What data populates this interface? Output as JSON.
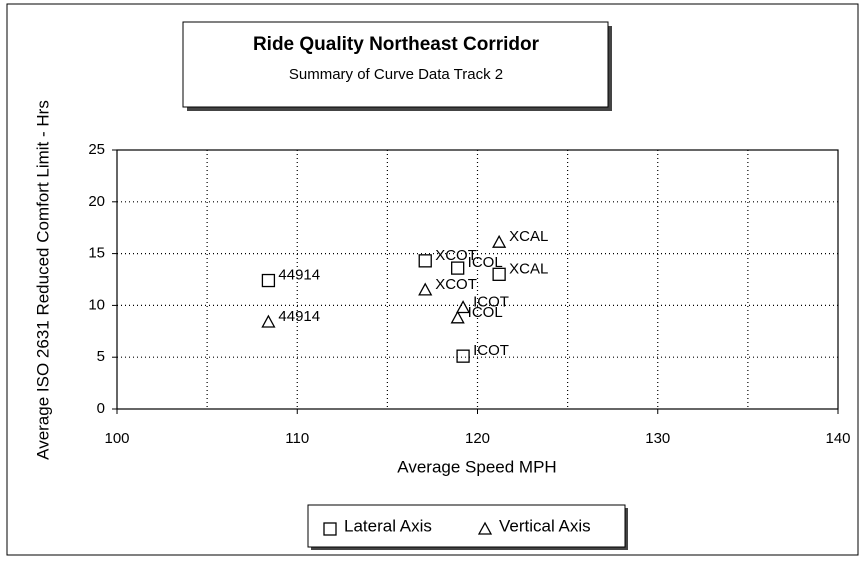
{
  "chart_data": {
    "type": "scatter",
    "title": "Ride Quality Northeast Corridor",
    "subtitle": "Summary of Curve Data Track 2",
    "x_label": "Average Speed MPH",
    "y_label": "Average ISO 2631 Reduced Comfort Limit  - Hrs",
    "xlim": [
      100,
      140
    ],
    "xticks": [
      100,
      110,
      120,
      130,
      140
    ],
    "ylim": [
      0,
      25
    ],
    "yticks": [
      0,
      5,
      10,
      15,
      20,
      25
    ],
    "grid": true,
    "grid_step_x": 5,
    "legend": "bottom",
    "series": [
      {
        "name": "Lateral Axis",
        "marker": "square",
        "color": "#000000",
        "x": [
          108.4,
          117.1,
          118.9,
          121.2,
          119.2
        ],
        "values": [
          12.4,
          14.3,
          13.6,
          13.0,
          5.1
        ],
        "labels": [
          "44914",
          "XCOT",
          "ICOL",
          "XCAL",
          "ICOT"
        ]
      },
      {
        "name": "Vertical Axis",
        "marker": "triangle",
        "color": "#000000",
        "x": [
          108.4,
          117.1,
          118.9,
          119.2,
          121.2
        ],
        "values": [
          8.4,
          11.5,
          8.8,
          9.8,
          16.1
        ],
        "labels": [
          "44914",
          "XCOT",
          "ICOL",
          "ICOT",
          "XCAL"
        ]
      }
    ]
  }
}
